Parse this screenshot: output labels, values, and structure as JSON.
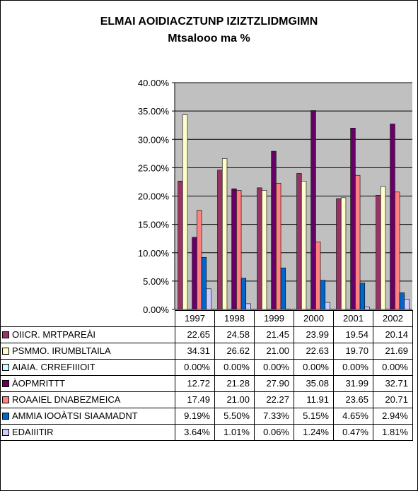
{
  "chart_data": {
    "type": "bar",
    "title": "ELMAI AOIDIACZTUNP IZIZTZLIDMGIMN",
    "subtitle": "Mtsalooo ma %",
    "categories": [
      "1997",
      "1998",
      "1999",
      "2000",
      "2001",
      "2002"
    ],
    "ylim": [
      0,
      40
    ],
    "yticks": [
      "0.00%",
      "5.00%",
      "10.00%",
      "15.00%",
      "20.00%",
      "25.00%",
      "30.00%",
      "35.00%",
      "40.00%"
    ],
    "grid": true,
    "legend": "table-below",
    "series": [
      {
        "name": "OIICR. MRTPAREÀI",
        "color": "#993366",
        "values": [
          22.65,
          24.58,
          21.45,
          23.99,
          19.54,
          20.14
        ],
        "labels": [
          "22.65",
          "24.58",
          "21.45",
          "23.99",
          "19.54",
          "20.14"
        ]
      },
      {
        "name": "PSMMO. IRUMBLTAILA",
        "color": "#FFFFCC",
        "values": [
          34.31,
          26.62,
          21.0,
          22.63,
          19.7,
          21.69
        ],
        "labels": [
          "34.31",
          "26.62",
          "21.00",
          "22.63",
          "19.70",
          "21.69"
        ]
      },
      {
        "name": "AIAIA. CRREFIIIOIT",
        "color": "#CCFFFF",
        "values": [
          0,
          0,
          0,
          0,
          0,
          0
        ],
        "labels": [
          "0.00%",
          "0.00%",
          "0.00%",
          "0.00%",
          "0.00%",
          "0.00%"
        ]
      },
      {
        "name": "ÀOPMRITTT",
        "color": "#660066",
        "values": [
          12.72,
          21.28,
          27.9,
          35.08,
          31.99,
          32.71
        ],
        "labels": [
          "12.72",
          "21.28",
          "27.90",
          "35.08",
          "31.99",
          "32.71"
        ]
      },
      {
        "name": "ROAAIEL DNABEZMEICA",
        "color": "#FF8080",
        "values": [
          17.49,
          21.0,
          22.27,
          11.91,
          23.65,
          20.71
        ],
        "labels": [
          "17.49",
          "21.00",
          "22.27",
          "11.91",
          "23.65",
          "20.71"
        ]
      },
      {
        "name": "AMMIA IOOÀTSI SIAAMADNT",
        "color": "#0066CC",
        "values": [
          9.19,
          5.5,
          7.33,
          5.15,
          4.65,
          2.94
        ],
        "labels": [
          "9.19%",
          "5.50%",
          "7.33%",
          "5.15%",
          "4.65%",
          "2.94%"
        ]
      },
      {
        "name": "EDAIIITIR",
        "color": "#CCCCFF",
        "values": [
          3.64,
          1.01,
          0.06,
          1.24,
          0.47,
          1.81
        ],
        "labels": [
          "3.64%",
          "1.01%",
          "0.06%",
          "1.24%",
          "0.47%",
          "1.81%"
        ]
      }
    ]
  },
  "colors": {
    "plot_background": "#C0C0C0",
    "gridline": "#000000"
  }
}
